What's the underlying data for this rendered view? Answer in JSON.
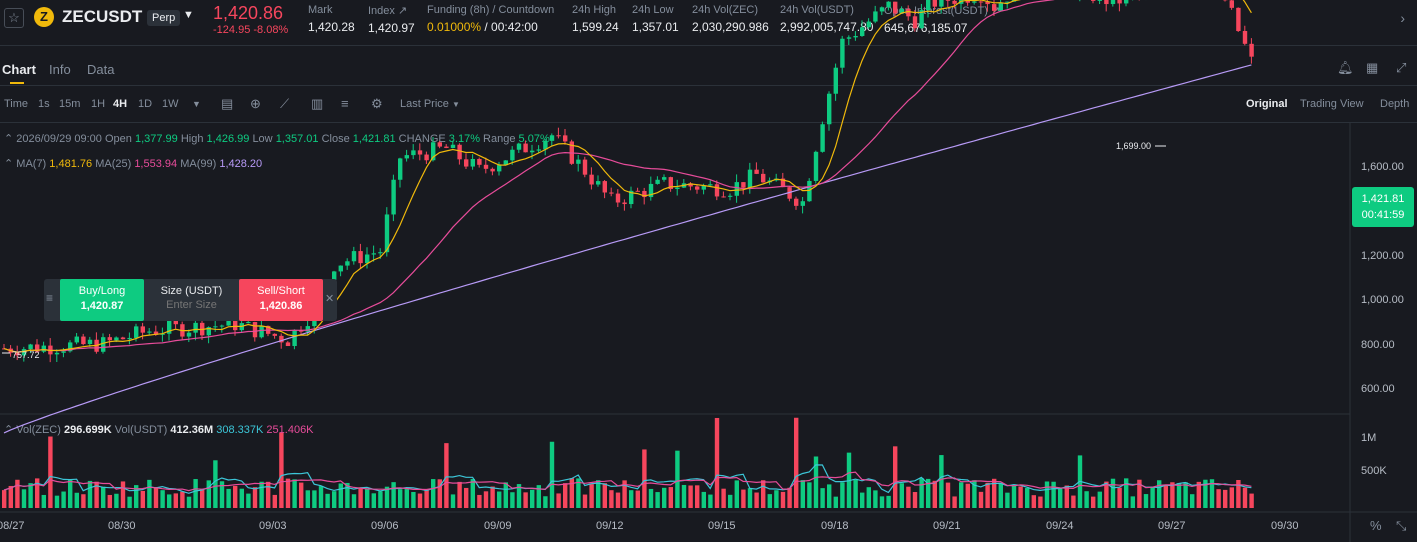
{
  "header": {
    "symbol": "ZECUSDT",
    "contract_type": "Perp",
    "last_price": "1,420.86",
    "change": "-124.95 -8.08%",
    "stats": [
      {
        "label": "Mark",
        "value": "1,420.28"
      },
      {
        "label": "Index",
        "value": "1,420.97"
      },
      {
        "label": "Funding (8h) / Countdown",
        "rate": "0.01000%",
        "countdown": "/ 00:42:00"
      },
      {
        "label": "24h High",
        "value": "1,599.24"
      },
      {
        "label": "24h Low",
        "value": "1,357.01"
      },
      {
        "label": "24h Vol(ZEC)",
        "value": "2,030,290.986"
      },
      {
        "label": "24h Vol(USDT)",
        "value": "2,992,005,747.80"
      },
      {
        "label": "Open Interest(USDT)",
        "value": "645,676,185.07"
      }
    ]
  },
  "tabs": [
    "Chart",
    "Info",
    "Data"
  ],
  "toolbar": {
    "intervals": [
      "Time",
      "1s",
      "15m",
      "1H",
      "4H",
      "1D",
      "1W"
    ],
    "active_interval": "4H",
    "price_type": "Last Price",
    "views": [
      "Original",
      "Trading View",
      "Depth"
    ],
    "active_view": "Original"
  },
  "ohlc": {
    "date": "2026/09/29 09:00",
    "open_label": "Open",
    "open": "1,377.99",
    "high_label": "High",
    "high": "1,426.99",
    "low_label": "Low",
    "low": "1,357.01",
    "close_label": "Close",
    "close": "1,421.81",
    "change_label": "CHANGE",
    "change": "3.17%",
    "range_label": "Range",
    "range": "5.07%"
  },
  "ma": [
    {
      "label": "MA(7)",
      "value": "1,481.76",
      "color": "#f0b90b"
    },
    {
      "label": "MA(25)",
      "value": "1,553.94",
      "color": "#e74c9a"
    },
    {
      "label": "MA(99)",
      "value": "1,428.20",
      "color": "#b79af6"
    }
  ],
  "volume": {
    "zec_label": "Vol(ZEC)",
    "zec": "296.699K",
    "usdt_label": "Vol(USDT)",
    "usdt": "412.36M",
    "ma1": "308.337K",
    "ma2": "251.406K"
  },
  "trade": {
    "buy_label": "Buy/Long",
    "buy_price": "1,420.87",
    "size_label": "Size (USDT)",
    "size_placeholder": "Enter Size",
    "sell_label": "Sell/Short",
    "sell_price": "1,420.86"
  },
  "price_axis": [
    "1,600.00",
    "1,400.00",
    "1,200.00",
    "1,000.00",
    "800.00",
    "600.00"
  ],
  "volume_axis": [
    "1M",
    "500K"
  ],
  "current_price_label": "1,421.81",
  "countdown_label": "00:41:59",
  "high_marker": "1,699.00",
  "low_marker": "757.72",
  "x_axis": [
    "08/27",
    "08/30",
    "09/03",
    "09/06",
    "09/09",
    "09/12",
    "09/15",
    "09/18",
    "09/21",
    "09/24",
    "09/27",
    "09/30"
  ],
  "colors": {
    "up": "#0ecb81",
    "down": "#f6465d",
    "accent": "#f0b90b",
    "bg": "#181a20"
  },
  "icons": [
    "star-icon",
    "bell-icon",
    "grid-icon",
    "expand-icon",
    "percent-icon",
    "fullscreen-icon"
  ]
}
